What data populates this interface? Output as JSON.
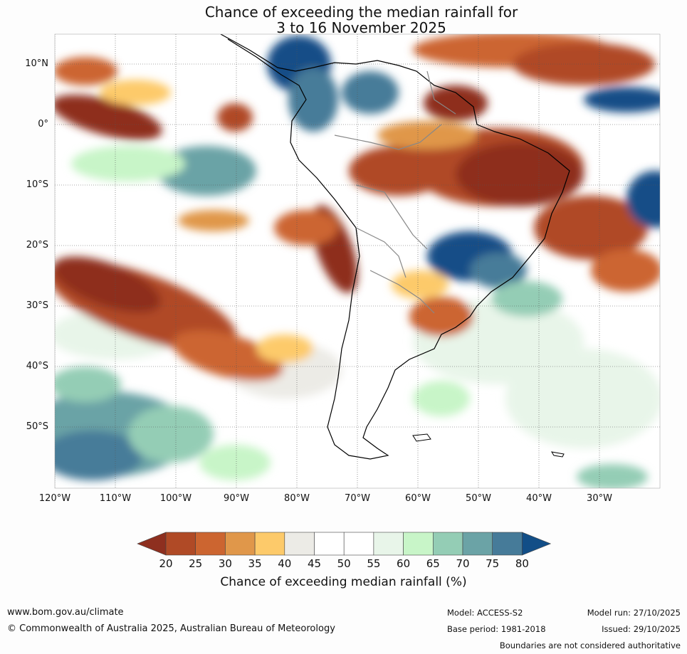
{
  "title": {
    "line1": "Chance of exceeding the median rainfall for",
    "line2": "3 to 16 November 2025"
  },
  "map": {
    "lat_labels": [
      "10°N",
      "0°",
      "10°S",
      "20°S",
      "30°S",
      "40°S",
      "50°S"
    ],
    "lon_labels": [
      "120°W",
      "110°W",
      "100°W",
      "90°W",
      "80°W",
      "70°W",
      "60°W",
      "50°W",
      "40°W",
      "30°W"
    ],
    "lat_range": [
      -60,
      15
    ],
    "lon_range": [
      -120,
      -20
    ]
  },
  "colorbar": {
    "ticks": [
      "20",
      "25",
      "30",
      "35",
      "40",
      "45",
      "50",
      "55",
      "60",
      "65",
      "70",
      "75",
      "80"
    ],
    "colors": [
      "#8e2f1f",
      "#b04a26",
      "#cc6530",
      "#e0974a",
      "#fdca6a",
      "#ecebe6",
      "#ffffff",
      "#ffffff",
      "#e8f5e9",
      "#c8f5c8",
      "#94cdb5",
      "#6ba3a6",
      "#467b99",
      "#124e87"
    ],
    "label": "Chance of exceeding median rainfall (%)"
  },
  "footer": {
    "website": "www.bom.gov.au/climate",
    "copyright": "© Commonwealth of Australia 2025, Australian Bureau of Meteorology",
    "model": "Model: ACCESS-S2",
    "base_period": "Base period: 1981-2018",
    "model_run": "Model run: 27/10/2025",
    "issued": "Issued: 29/10/2025",
    "disclaimer": "Boundaries are not considered authoritative"
  }
}
